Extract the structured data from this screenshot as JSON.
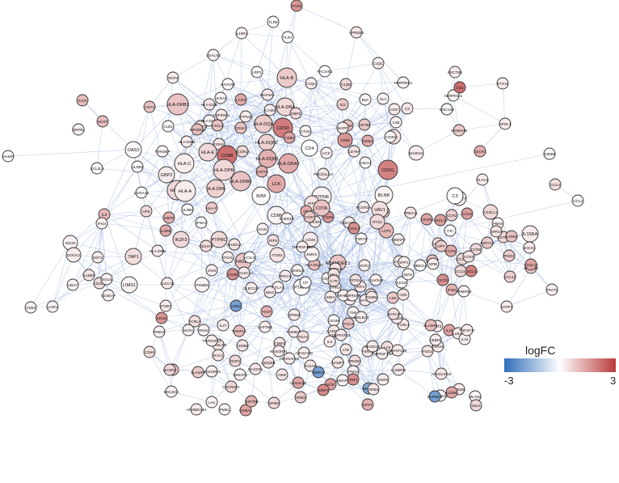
{
  "legend": {
    "title": "logFC",
    "min_label": "-3",
    "max_label": "3",
    "min": -3,
    "max": 3,
    "low_color": "#2f6fba",
    "mid_color": "#ffffff",
    "high_color": "#b93a3a"
  },
  "edge_color": "#a9bde6",
  "nodes": [
    {
      "id": "PAX5",
      "fc": 1.6
    },
    {
      "id": "TLR8",
      "fc": 0.1
    },
    {
      "id": "IL10RA",
      "fc": 0.2
    },
    {
      "id": "TLR7",
      "fc": 0.1
    },
    {
      "id": "VPREB3",
      "fc": 0.4
    },
    {
      "id": "LGALS9",
      "fc": 0.2
    },
    {
      "id": "PACSIN1",
      "fc": 0.0
    },
    {
      "id": "C1QC",
      "fc": 0.3
    },
    {
      "id": "SECTM1",
      "fc": 0.3
    },
    {
      "id": "LRP1",
      "fc": 0.1
    },
    {
      "id": "HLA-B",
      "fc": 0.8
    },
    {
      "id": "C1QA",
      "fc": 0.3
    },
    {
      "id": "C1QB",
      "fc": 0.6
    },
    {
      "id": "SERPING1",
      "fc": 0.2
    },
    {
      "id": "SERPINA1",
      "fc": 0.2
    },
    {
      "id": "HAVCR2",
      "fc": 0.1
    },
    {
      "id": "STX11",
      "fc": 0.3
    },
    {
      "id": "KCNJ2",
      "fc": 0.0
    },
    {
      "id": "NCR3",
      "fc": 0.3
    },
    {
      "id": "MAP4K1",
      "fc": 0.3
    },
    {
      "id": "LILRA4",
      "fc": 0.2
    },
    {
      "id": "HLA-DQB",
      "fc": 0.4
    },
    {
      "id": "ICOS",
      "fc": 1.0
    },
    {
      "id": "HLA-DRB1",
      "fc": 0.9
    },
    {
      "id": "LAG3",
      "fc": 1.3
    },
    {
      "id": "ICAM1",
      "fc": 0.3
    },
    {
      "id": "BLK",
      "fc": 0.2
    },
    {
      "id": "IGJ",
      "fc": 0.8
    },
    {
      "id": "CD1",
      "fc": 2.2
    },
    {
      "id": "UNC13D",
      "fc": 0.1
    },
    {
      "id": "CD74",
      "fc": 0.9
    },
    {
      "id": "HLA-DRA",
      "fc": 0.6
    },
    {
      "id": "HLA-DQA",
      "fc": 0.8
    },
    {
      "id": "CD3D",
      "fc": 2.0
    },
    {
      "id": "SLA",
      "fc": 0.2
    },
    {
      "id": "C2",
      "fc": 0.4
    },
    {
      "id": "APOL1",
      "fc": 0.3
    },
    {
      "id": "CD27",
      "fc": 0.3
    },
    {
      "id": "GBP1",
      "fc": 0.6
    },
    {
      "id": "HCST",
      "fc": 1.0
    },
    {
      "id": "CLB1",
      "fc": 0.1
    },
    {
      "id": "CD80",
      "fc": 1.4
    },
    {
      "id": "CD69",
      "fc": 1.6
    },
    {
      "id": "TNFRSF4",
      "fc": 0.4
    },
    {
      "id": "CD2474",
      "fc": 0.5
    },
    {
      "id": "PTPN22",
      "fc": 0.3
    },
    {
      "id": "CD247",
      "fc": 0.9
    },
    {
      "id": "HLA-DQB2",
      "fc": 0.7
    },
    {
      "id": "CD38",
      "fc": 1.0
    },
    {
      "id": "CTSS",
      "fc": 0.2
    },
    {
      "id": "BAPP",
      "fc": 0.3
    },
    {
      "id": "GZMA",
      "fc": 1.3
    },
    {
      "id": "C4B",
      "fc": 0.2
    },
    {
      "id": "SIRPB1",
      "fc": 0.2
    },
    {
      "id": "KIR2DL4",
      "fc": 1.0
    },
    {
      "id": "HLA-DMA",
      "fc": 0.2
    },
    {
      "id": "HLA-DMB",
      "fc": 0.3
    },
    {
      "id": "CXCL8",
      "fc": 0.9
    },
    {
      "id": "CD79B",
      "fc": 0.8
    },
    {
      "id": "CRN1",
      "fc": 0.4
    },
    {
      "id": "FCGR1A",
      "fc": 0.6
    },
    {
      "id": "CD4",
      "fc": 0.0
    },
    {
      "id": "IL1B",
      "fc": 0.5
    },
    {
      "id": "SOWAHB",
      "fc": 0.8
    },
    {
      "id": "OAS2",
      "fc": 0.1
    },
    {
      "id": "TYROBP",
      "fc": 0.2
    },
    {
      "id": "HLA-E",
      "fc": 0.6
    },
    {
      "id": "CD8B",
      "fc": 2.2
    },
    {
      "id": "HLA-DQB1",
      "fc": 1.2
    },
    {
      "id": "HCK",
      "fc": 0.2
    },
    {
      "id": "CD36",
      "fc": 0.1
    },
    {
      "id": "SH2D2A",
      "fc": 0.3
    },
    {
      "id": "CECR1",
      "fc": 1.2
    },
    {
      "id": "GZMM",
      "fc": 0.1
    },
    {
      "id": "HAMP",
      "fc": 0.1
    },
    {
      "id": "LILRB2",
      "fc": 0.1
    },
    {
      "id": "HLA-C",
      "fc": 0.3
    },
    {
      "id": "HLA-DPB",
      "fc": 0.6
    },
    {
      "id": "HLA-DRA2",
      "fc": 1.3
    },
    {
      "id": "CD79A",
      "fc": 0.4
    },
    {
      "id": "PLAC8",
      "fc": 0.3
    },
    {
      "id": "GBP2",
      "fc": 0.3
    },
    {
      "id": "CD3G",
      "fc": 1.9
    },
    {
      "id": "HLA-DPA",
      "fc": 0.7
    },
    {
      "id": "ZAP70",
      "fc": 1.2
    },
    {
      "id": "CMAH",
      "fc": 0.1
    },
    {
      "id": "PDCD1LG2",
      "fc": 0.4
    },
    {
      "id": "LILRA4B",
      "fc": 0.1
    },
    {
      "id": "HLA-G",
      "fc": 0.6
    },
    {
      "id": "HLA-A",
      "fc": 0.3
    },
    {
      "id": "SLAMF7",
      "fc": 0.3
    },
    {
      "id": "LCK",
      "fc": 1.3
    },
    {
      "id": "HLA-DRB5",
      "fc": 0.9
    },
    {
      "id": "B2M",
      "fc": 0.1
    },
    {
      "id": "PTPN6",
      "fc": 0.2
    },
    {
      "id": "BLNK",
      "fc": 0.2
    },
    {
      "id": "CD19",
      "fc": 0.9
    },
    {
      "id": "C3",
      "fc": 0.0
    },
    {
      "id": "CCL4",
      "fc": 0.5
    },
    {
      "id": "CCL3",
      "fc": 0.1
    },
    {
      "id": "CCL3L3",
      "fc": 0.1
    },
    {
      "id": "HFE",
      "fc": 0.6
    },
    {
      "id": "LILRB4",
      "fc": 0.1
    },
    {
      "id": "HLA-F",
      "fc": 0.8
    },
    {
      "id": "CD86",
      "fc": 0.2
    },
    {
      "id": "PTPRC",
      "fc": 0.6
    },
    {
      "id": "IRF1",
      "fc": 0.4
    },
    {
      "id": "FCGR3A",
      "fc": 0.3
    },
    {
      "id": "VAV1",
      "fc": 0.5
    },
    {
      "id": "PRKCQ",
      "fc": 0.4
    },
    {
      "id": "CXCR6",
      "fc": 1.4
    },
    {
      "id": "CCR2",
      "fc": 0.7
    },
    {
      "id": "IL9",
      "fc": 1.1
    },
    {
      "id": "IFI44",
      "fc": 0.2
    },
    {
      "id": "GBP5",
      "fc": 1.2
    },
    {
      "id": "IL2RB",
      "fc": 1.3
    },
    {
      "id": "IFNA4",
      "fc": 0.1
    },
    {
      "id": "OASL",
      "fc": 0.2
    },
    {
      "id": "FCER1G",
      "fc": 0.2
    },
    {
      "id": "PIK3R5",
      "fc": 0.3
    },
    {
      "id": "IKZF3",
      "fc": 0.6
    },
    {
      "id": "ITK",
      "fc": 1.3
    },
    {
      "id": "CD28",
      "fc": 1.6
    },
    {
      "id": "NGKAP1L",
      "fc": 0.3
    },
    {
      "id": "LCP2",
      "fc": 1.1
    },
    {
      "id": "CXCL10",
      "fc": 1.5
    },
    {
      "id": "CCR5",
      "fc": 1.3
    },
    {
      "id": "CCL5",
      "fc": 1.5
    },
    {
      "id": "CX3CL1",
      "fc": 0.6
    },
    {
      "id": "PBK8",
      "fc": 0.2
    },
    {
      "id": "ISG20",
      "fc": 0.2
    },
    {
      "id": "HLA-DRB",
      "fc": 0.3
    },
    {
      "id": "IRF8",
      "fc": 0.5
    },
    {
      "id": "SH2D1A",
      "fc": 0.4
    },
    {
      "id": "GIMAP2",
      "fc": 0.3
    },
    {
      "id": "DOCK2",
      "fc": 0.3
    },
    {
      "id": "CXCL9",
      "fc": 1.7
    },
    {
      "id": "CCR7",
      "fc": 0.8
    },
    {
      "id": "SSTR3",
      "fc": 0.6
    },
    {
      "id": "IL2RB1",
      "fc": 0.9
    },
    {
      "id": "CIITA",
      "fc": 0.9
    },
    {
      "id": "CXCL11",
      "fc": 1.9
    },
    {
      "id": "CFI",
      "fc": 0.1
    },
    {
      "id": "IL15RA",
      "fc": 0.3
    },
    {
      "id": "BST2",
      "fc": 0.3
    },
    {
      "id": "TAP1",
      "fc": 0.5
    },
    {
      "id": "CD247B",
      "fc": 0.5
    },
    {
      "id": "ITGAL",
      "fc": 0.3
    },
    {
      "id": "ITGB2",
      "fc": 0.4
    },
    {
      "id": "HLA-DQA2",
      "fc": 1.0
    },
    {
      "id": "CD48",
      "fc": 0.3
    },
    {
      "id": "CCL4L",
      "fc": 0.5
    },
    {
      "id": "CNR2",
      "fc": 0.4
    },
    {
      "id": "GPR18",
      "fc": 0.4
    },
    {
      "id": "SOCS1",
      "fc": 0.3
    },
    {
      "id": "CD226",
      "fc": 0.5
    },
    {
      "id": "PTAFR",
      "fc": 0.1
    },
    {
      "id": "FASLG",
      "fc": 0.9
    },
    {
      "id": "ADAMDEC1",
      "fc": 0.9
    },
    {
      "id": "RTS2",
      "fc": 0.6
    },
    {
      "id": "P2RY10",
      "fc": 0.4
    },
    {
      "id": "GNGT2",
      "fc": 0.9
    },
    {
      "id": "NPY",
      "fc": 0.8
    },
    {
      "id": "P2RY13",
      "fc": 0.8
    },
    {
      "id": "PNOC",
      "fc": 0.8
    },
    {
      "id": "UBA7",
      "fc": 0.2
    },
    {
      "id": "LIMS1",
      "fc": 0.2
    },
    {
      "id": "CLEC4E",
      "fc": 0.3
    },
    {
      "id": "JAK3",
      "fc": 0.3
    },
    {
      "id": "PSMB9",
      "fc": 0.2
    },
    {
      "id": "SIGLEC14",
      "fc": 0.3
    },
    {
      "id": "PRKCB",
      "fc": 0.3
    },
    {
      "id": "EMDX",
      "fc": 0.2
    },
    {
      "id": "CD3E",
      "fc": 1.7
    },
    {
      "id": "CD40LG",
      "fc": 0.2
    },
    {
      "id": "P2RY8",
      "fc": 0.2
    },
    {
      "id": "XCR1",
      "fc": 0.3
    },
    {
      "id": "SPP1",
      "fc": 0.3
    },
    {
      "id": "CCL19",
      "fc": 0.6
    },
    {
      "id": "GPR183",
      "fc": 0.8
    },
    {
      "id": "CCL13",
      "fc": 0.7
    },
    {
      "id": "CCR8",
      "fc": 0.6
    },
    {
      "id": "IL18BP",
      "fc": 0.4
    },
    {
      "id": "ISG15",
      "fc": 0.2
    },
    {
      "id": "CDH1",
      "fc": 0.1
    },
    {
      "id": "IRF4",
      "fc": 0.4
    },
    {
      "id": "SPIB",
      "fc": 0.3
    },
    {
      "id": "CXCR3",
      "fc": 1.7
    },
    {
      "id": "CCL8",
      "fc": 0.6
    },
    {
      "id": "CCR3",
      "fc": 0.4
    },
    {
      "id": "CD1D",
      "fc": 0.1
    },
    {
      "id": "CD19B",
      "fc": 0.1
    },
    {
      "id": "CLEC12A",
      "fc": 0.3
    },
    {
      "id": "CD22",
      "fc": 0.3
    },
    {
      "id": "SELL",
      "fc": 0.4
    },
    {
      "id": "UBE2L6",
      "fc": 0.1
    },
    {
      "id": "CXCL13",
      "fc": 1.4
    },
    {
      "id": "FCRL1",
      "fc": 0.4
    },
    {
      "id": "IFNG",
      "fc": 1.2
    },
    {
      "id": "TRAT1",
      "fc": 0.2
    },
    {
      "id": "CD3EAP",
      "fc": 0.2
    },
    {
      "id": "TNFRSF13C",
      "fc": 0.3
    },
    {
      "id": "CCR4",
      "fc": 0.4
    },
    {
      "id": "CTLA4",
      "fc": 0.2
    },
    {
      "id": "RTK5",
      "fc": 0.5
    },
    {
      "id": "WAS",
      "fc": 0.2
    },
    {
      "id": "KCNJ3",
      "fc": 0.0
    },
    {
      "id": "BIN2",
      "fc": 0.3
    },
    {
      "id": "CP",
      "fc": 0.1
    },
    {
      "id": "FPR2",
      "fc": 0.2
    },
    {
      "id": "IL7R",
      "fc": 0.5
    },
    {
      "id": "C1orf162",
      "fc": 0.2
    },
    {
      "id": "FRMPD3",
      "fc": 0.2
    },
    {
      "id": "CD53",
      "fc": 0.2
    },
    {
      "id": "LAIR1",
      "fc": 0.2
    },
    {
      "id": "CARD11",
      "fc": 0.4
    },
    {
      "id": "ITGB7",
      "fc": 0.3
    },
    {
      "id": "CD1E",
      "fc": 1.6
    },
    {
      "id": "FCRLA",
      "fc": 0.5
    },
    {
      "id": "CD52",
      "fc": -2.0
    },
    {
      "id": "TIGIT",
      "fc": 1.2
    },
    {
      "id": "GPR65",
      "fc": 0.3
    },
    {
      "id": "EBI3",
      "fc": 0.3
    },
    {
      "id": "NFAM1",
      "fc": 0.2
    },
    {
      "id": "STAT4",
      "fc": 0.3
    },
    {
      "id": "PSMB8",
      "fc": 0.4
    },
    {
      "id": "TNFRSF8",
      "fc": 0.3
    },
    {
      "id": "TNF",
      "fc": 0.2
    },
    {
      "id": "CD5",
      "fc": 0.8
    },
    {
      "id": "SP110",
      "fc": 0.3
    },
    {
      "id": "DAPP1",
      "fc": 0.3
    },
    {
      "id": "TRBV5",
      "fc": 0.2
    },
    {
      "id": "NCR1",
      "fc": 0.2
    },
    {
      "id": "RNS2",
      "fc": 0.2
    },
    {
      "id": "IL27",
      "fc": 0.3
    },
    {
      "id": "LAPTM5",
      "fc": 0.3
    },
    {
      "id": "PSMB10",
      "fc": 0.3
    },
    {
      "id": "PARP12",
      "fc": 1.0
    },
    {
      "id": "SIGLEC7",
      "fc": 0.3
    },
    {
      "id": "TGAX",
      "fc": 0.5
    },
    {
      "id": "ITGAX",
      "fc": 0.9
    },
    {
      "id": "CD6",
      "fc": 0.4
    },
    {
      "id": "DATA3",
      "fc": 0.5
    },
    {
      "id": "FLT3",
      "fc": 0.3
    },
    {
      "id": "IL10",
      "fc": 1.4
    },
    {
      "id": "CD40",
      "fc": 0.5
    },
    {
      "id": "CD40LGB",
      "fc": 0.4
    },
    {
      "id": "RAC2",
      "fc": 0.4
    },
    {
      "id": "CD86B",
      "fc": 0.4
    },
    {
      "id": "ARHGAP9",
      "fc": 0.3
    },
    {
      "id": "CMBS",
      "fc": 0.4
    },
    {
      "id": "IL6",
      "fc": 0.3
    },
    {
      "id": "LTB",
      "fc": 0.4
    },
    {
      "id": "P2RX5",
      "fc": 0.4
    },
    {
      "id": "LY9",
      "fc": 0.5
    },
    {
      "id": "SLAMF1",
      "fc": 1.0
    },
    {
      "id": "IL2RAP",
      "fc": 0.3
    },
    {
      "id": "LTA",
      "fc": 1.0
    },
    {
      "id": "TNFRSF14",
      "fc": 0.3
    },
    {
      "id": "RASGRP1",
      "fc": 0.3
    },
    {
      "id": "TNFRSF18",
      "fc": 0.3
    },
    {
      "id": "SH2D1B",
      "fc": 0.3
    },
    {
      "id": "IL18",
      "fc": 0.2
    },
    {
      "id": "TNFSF13B",
      "fc": 0.3
    },
    {
      "id": "P2RX6",
      "fc": 0.3
    },
    {
      "id": "RNF2",
      "fc": 0.6
    },
    {
      "id": "CD226B",
      "fc": 0.5
    },
    {
      "id": "ARHGAP25",
      "fc": 0.3
    },
    {
      "id": "IL18BPB",
      "fc": 0.3
    },
    {
      "id": "CEBPA",
      "fc": 0.3
    },
    {
      "id": "TNFSF17",
      "fc": 0.3
    },
    {
      "id": "NCOR2",
      "fc": 0.6
    },
    {
      "id": "RASGRP2",
      "fc": 0.3
    },
    {
      "id": "RASSF5",
      "fc": 0.4
    },
    {
      "id": "TAGAP",
      "fc": 0.4
    },
    {
      "id": "SIAMF7",
      "fc": 0.4
    },
    {
      "id": "TNFRSF13B",
      "fc": 0.3
    },
    {
      "id": "PRDM1",
      "fc": 0.5
    },
    {
      "id": "FGD2",
      "fc": 0.4
    },
    {
      "id": "ARHGAP30",
      "fc": 0.4
    },
    {
      "id": "SLAMF6",
      "fc": 0.8
    },
    {
      "id": "GIMAP4",
      "fc": 0.2
    },
    {
      "id": "AIM2",
      "fc": 0.4
    },
    {
      "id": "MMP13",
      "fc": -2.0
    },
    {
      "id": "PNN2",
      "fc": 0.2
    },
    {
      "id": "GCR",
      "fc": 1.5
    },
    {
      "id": "APOBEC3A",
      "fc": 0.2
    },
    {
      "id": "MLANA",
      "fc": 0.2
    },
    {
      "id": "SIGLEC1",
      "fc": 0.2
    },
    {
      "id": "CXCR2P1",
      "fc": 0.6
    },
    {
      "id": "CD14A18",
      "fc": 1.4
    },
    {
      "id": "GIMAP5",
      "fc": 0.2
    },
    {
      "id": "GSR5",
      "fc": 0.3
    },
    {
      "id": "MMP28",
      "fc": -1.8
    },
    {
      "id": "CD52B",
      "fc": 0.4
    },
    {
      "id": "LAI1",
      "fc": 0.2
    },
    {
      "id": "APOBEC3H",
      "fc": 0.3
    },
    {
      "id": "PMEL",
      "fc": 0.2
    },
    {
      "id": "SPIB2",
      "fc": 0.6
    },
    {
      "id": "CRB3",
      "fc": 0.8
    },
    {
      "id": "MTP1",
      "fc": 1.2
    },
    {
      "id": "CHRDL1",
      "fc": -2.0
    },
    {
      "id": "GZMK",
      "fc": 1.4
    },
    {
      "id": "GZMA2",
      "fc": 1.4
    },
    {
      "id": "ZAP70B",
      "fc": 1.2
    },
    {
      "id": "SIRF1",
      "fc": 1.8
    },
    {
      "id": "PRF1",
      "fc": 1.7
    },
    {
      "id": "ORB3",
      "fc": 0.4
    },
    {
      "id": "SNLK",
      "fc": 0.6
    }
  ],
  "edges_note": "",
  "clusters_note": ""
}
